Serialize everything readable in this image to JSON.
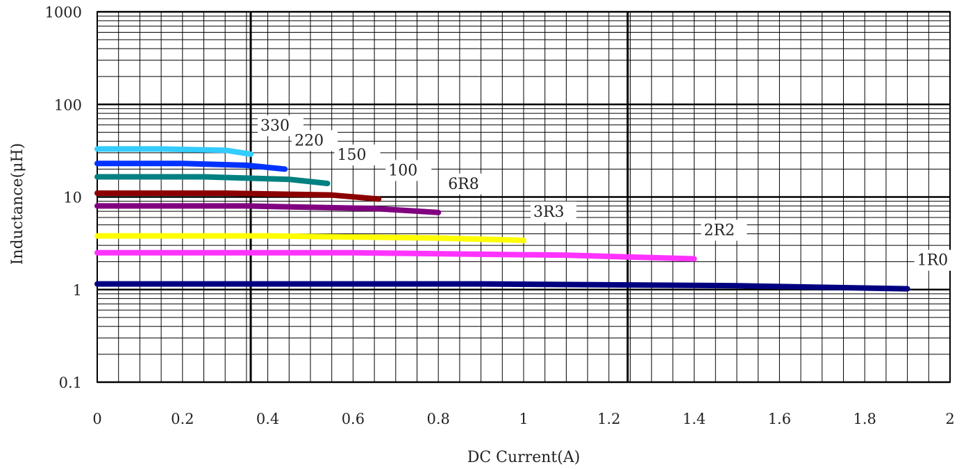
{
  "chart_data": {
    "type": "line",
    "title": "",
    "xlabel": "DC Current(A)",
    "ylabel": "Inductance(μH)",
    "xlim": [
      0,
      2
    ],
    "ylim": [
      0.1,
      1000
    ],
    "yscale": "log",
    "grid": true,
    "x_ticks": [
      "0",
      "0.2",
      "0.4",
      "0.6",
      "0.8",
      "1",
      "1.2",
      "1.4",
      "1.6",
      "1.8",
      "2"
    ],
    "x_tick_values": [
      0,
      0.2,
      0.4,
      0.6,
      0.8,
      1,
      1.2,
      1.4,
      1.6,
      1.8,
      2
    ],
    "y_ticks": [
      "0.1",
      "1",
      "10",
      "100",
      "1000"
    ],
    "y_tick_values": [
      0.1,
      1,
      10,
      100,
      1000
    ],
    "series": [
      {
        "label": "330",
        "color": "#33ccff",
        "x": [
          0,
          0.15,
          0.3,
          0.36
        ],
        "y": [
          33,
          33,
          32,
          29
        ]
      },
      {
        "label": "220",
        "color": "#0033ff",
        "x": [
          0,
          0.2,
          0.35,
          0.44
        ],
        "y": [
          23,
          23,
          22,
          20
        ]
      },
      {
        "label": "150",
        "color": "#008080",
        "x": [
          0,
          0.25,
          0.45,
          0.54
        ],
        "y": [
          16.5,
          16.5,
          15.5,
          14
        ]
      },
      {
        "label": "100",
        "color": "#8b0000",
        "x": [
          0,
          0.3,
          0.55,
          0.66
        ],
        "y": [
          11,
          11,
          10.5,
          9.5
        ]
      },
      {
        "label": "6R8",
        "color": "#800080",
        "x": [
          0,
          0.35,
          0.65,
          0.8
        ],
        "y": [
          8,
          8,
          7.5,
          6.8
        ]
      },
      {
        "label": "3R3",
        "color": "#ffff00",
        "x": [
          0,
          0.4,
          0.8,
          1.0
        ],
        "y": [
          3.8,
          3.8,
          3.6,
          3.4
        ]
      },
      {
        "label": "2R2",
        "color": "#ff33ff",
        "x": [
          0,
          0.6,
          1.1,
          1.4
        ],
        "y": [
          2.5,
          2.5,
          2.35,
          2.15
        ]
      },
      {
        "label": "1R0",
        "color": "#000080",
        "x": [
          0,
          0.9,
          1.5,
          1.9
        ],
        "y": [
          1.15,
          1.15,
          1.1,
          1.02
        ]
      }
    ]
  }
}
